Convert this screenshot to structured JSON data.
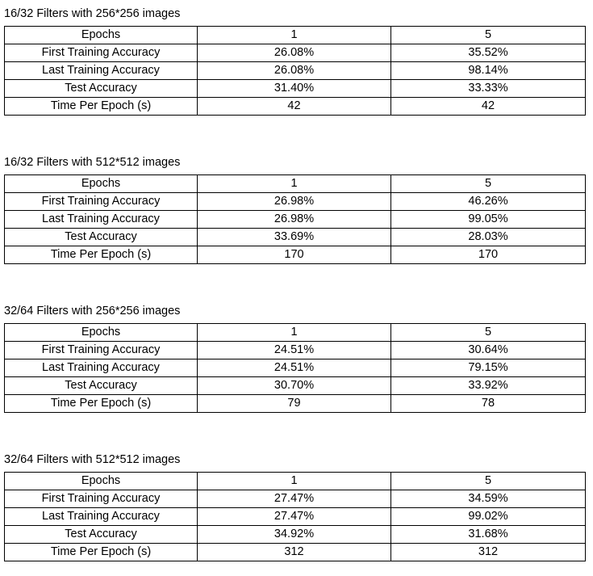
{
  "sections": [
    {
      "title": "16/32 Filters with 256*256 images",
      "rows": [
        [
          "Epochs",
          "1",
          "5"
        ],
        [
          "First Training Accuracy",
          "26.08%",
          "35.52%"
        ],
        [
          "Last Training Accuracy",
          "26.08%",
          "98.14%"
        ],
        [
          "Test Accuracy",
          "31.40%",
          "33.33%"
        ],
        [
          "Time Per Epoch (s)",
          "42",
          "42"
        ]
      ]
    },
    {
      "title": "16/32 Filters with 512*512 images",
      "rows": [
        [
          "Epochs",
          "1",
          "5"
        ],
        [
          "First Training Accuracy",
          "26.98%",
          "46.26%"
        ],
        [
          "Last Training Accuracy",
          "26.98%",
          "99.05%"
        ],
        [
          "Test Accuracy",
          "33.69%",
          "28.03%"
        ],
        [
          "Time Per Epoch (s)",
          "170",
          "170"
        ]
      ]
    },
    {
      "title": "32/64 Filters with 256*256 images",
      "rows": [
        [
          "Epochs",
          "1",
          "5"
        ],
        [
          "First Training Accuracy",
          "24.51%",
          "30.64%"
        ],
        [
          "Last Training Accuracy",
          "24.51%",
          "79.15%"
        ],
        [
          "Test Accuracy",
          "30.70%",
          "33.92%"
        ],
        [
          "Time Per Epoch (s)",
          "79",
          "78"
        ]
      ]
    },
    {
      "title": "32/64 Filters with 512*512 images",
      "rows": [
        [
          "Epochs",
          "1",
          "5"
        ],
        [
          "First Training Accuracy",
          "27.47%",
          "34.59%"
        ],
        [
          "Last Training Accuracy",
          "27.47%",
          "99.02%"
        ],
        [
          "Test Accuracy",
          "34.92%",
          "31.68%"
        ],
        [
          "Time Per Epoch (s)",
          "312",
          "312"
        ]
      ]
    }
  ]
}
